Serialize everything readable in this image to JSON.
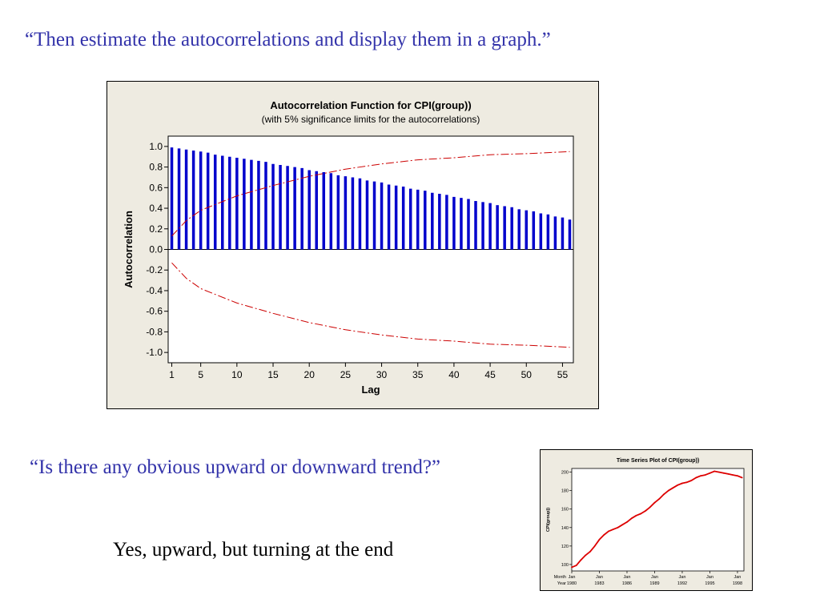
{
  "slide": {
    "quote_top": "“Then estimate the autocorrelations and display them in a graph.”",
    "quote_middle": "“Is there any obvious upward or downward trend?”",
    "answer": "Yes, upward, but turning at the end"
  },
  "colors": {
    "quote_text": "#3333aa",
    "panel_background": "#eeebe1",
    "acf_bars": "#0000cc",
    "significance_limits": "#cc0000",
    "series_line": "#dd0000"
  },
  "chart_data": [
    {
      "type": "bar",
      "title": "Autocorrelation Function for CPI(group))",
      "subtitle": "(with 5% significance limits for the autocorrelations)",
      "xlabel": "Lag",
      "ylabel": "Autocorrelation",
      "xlim": [
        0.5,
        56.5
      ],
      "ylim": [
        -1.1,
        1.1
      ],
      "x_ticks": [
        1,
        5,
        10,
        15,
        20,
        25,
        30,
        35,
        40,
        45,
        50,
        55
      ],
      "y_ticks": [
        1.0,
        0.8,
        0.6,
        0.4,
        0.2,
        0.0,
        -0.2,
        -0.4,
        -0.6,
        -0.8,
        -1.0
      ],
      "y_tick_labels": [
        "1.0",
        "0.8",
        "0.6",
        "0.4",
        "0.2",
        "0.0",
        "-0.2",
        "-0.4",
        "-0.6",
        "-0.8",
        "-1.0"
      ],
      "lags": [
        1,
        2,
        3,
        4,
        5,
        6,
        7,
        8,
        9,
        10,
        11,
        12,
        13,
        14,
        15,
        16,
        17,
        18,
        19,
        20,
        21,
        22,
        23,
        24,
        25,
        26,
        27,
        28,
        29,
        30,
        31,
        32,
        33,
        34,
        35,
        36,
        37,
        38,
        39,
        40,
        41,
        42,
        43,
        44,
        45,
        46,
        47,
        48,
        49,
        50,
        51,
        52,
        53,
        54,
        55,
        56
      ],
      "values": [
        0.99,
        0.98,
        0.97,
        0.96,
        0.95,
        0.94,
        0.92,
        0.91,
        0.9,
        0.89,
        0.88,
        0.87,
        0.86,
        0.85,
        0.83,
        0.82,
        0.81,
        0.8,
        0.79,
        0.77,
        0.76,
        0.75,
        0.74,
        0.72,
        0.71,
        0.7,
        0.69,
        0.67,
        0.66,
        0.65,
        0.63,
        0.62,
        0.61,
        0.59,
        0.58,
        0.57,
        0.55,
        0.54,
        0.53,
        0.51,
        0.5,
        0.49,
        0.47,
        0.46,
        0.45,
        0.43,
        0.42,
        0.41,
        0.39,
        0.38,
        0.37,
        0.35,
        0.34,
        0.32,
        0.31,
        0.29
      ],
      "significance_limit_upper": [
        [
          1,
          0.13
        ],
        [
          3,
          0.28
        ],
        [
          5,
          0.38
        ],
        [
          10,
          0.52
        ],
        [
          15,
          0.62
        ],
        [
          20,
          0.71
        ],
        [
          25,
          0.78
        ],
        [
          30,
          0.83
        ],
        [
          35,
          0.87
        ],
        [
          40,
          0.89
        ],
        [
          45,
          0.92
        ],
        [
          50,
          0.93
        ],
        [
          56,
          0.95
        ]
      ],
      "significance_limit_lower": [
        [
          1,
          -0.13
        ],
        [
          3,
          -0.28
        ],
        [
          5,
          -0.38
        ],
        [
          10,
          -0.52
        ],
        [
          15,
          -0.62
        ],
        [
          20,
          -0.71
        ],
        [
          25,
          -0.78
        ],
        [
          30,
          -0.83
        ],
        [
          35,
          -0.87
        ],
        [
          40,
          -0.89
        ],
        [
          45,
          -0.92
        ],
        [
          50,
          -0.93
        ],
        [
          56,
          -0.95
        ]
      ],
      "grid": false
    },
    {
      "type": "line",
      "title": "Time Series Plot of CPI(group))",
      "ylabel": "CPI(group))",
      "x_index_labels": [
        "Month",
        "Year"
      ],
      "x_tick_months": [
        "Jan",
        "Jan",
        "Jan",
        "Jan",
        "Jan",
        "Jan",
        "Jan"
      ],
      "x_tick_years": [
        "1980",
        "1983",
        "1986",
        "1989",
        "1992",
        "1995",
        "1998"
      ],
      "xlim": [
        1980,
        1998.7
      ],
      "ylim": [
        93,
        204
      ],
      "y_ticks": [
        100,
        120,
        140,
        160,
        180,
        200
      ],
      "series": [
        {
          "x": [
            1980.0,
            1980.5,
            1981.0,
            1981.5,
            1982.0,
            1982.5,
            1983.0,
            1983.5,
            1984.0,
            1984.5,
            1985.0,
            1985.5,
            1986.0,
            1986.5,
            1987.0,
            1987.5,
            1988.0,
            1988.5,
            1989.0,
            1989.5,
            1990.0,
            1990.5,
            1991.0,
            1991.5,
            1992.0,
            1992.5,
            1993.0,
            1993.5,
            1994.0,
            1994.5,
            1995.0,
            1995.5,
            1996.0,
            1996.5,
            1997.0,
            1997.5,
            1998.0,
            1998.5
          ],
          "y": [
            97,
            99,
            105,
            110,
            114,
            120,
            127,
            132,
            136,
            138,
            140,
            143,
            146,
            150,
            153,
            155,
            158,
            162,
            167,
            171,
            176,
            180,
            183,
            186,
            188,
            189,
            191,
            194,
            196,
            197,
            199,
            201,
            200,
            199,
            198,
            197,
            196,
            194
          ]
        }
      ],
      "grid": false
    }
  ]
}
